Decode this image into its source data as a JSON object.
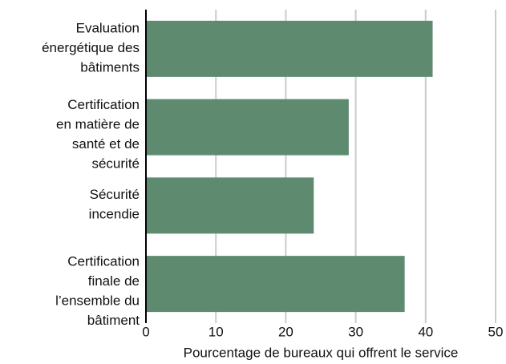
{
  "chart_data": {
    "type": "bar",
    "orientation": "horizontal",
    "categories": [
      "Evaluation\nénergétique des\nbâtiments",
      "Certification\nen matière de\nsanté et de\nsécurité",
      "Sécurité\nincendie",
      "Certification\nfinale de\nl’ensemble du\nbâtiment"
    ],
    "values": [
      41,
      29,
      24,
      37
    ],
    "color": "#5e8b70",
    "xlim": [
      0,
      50
    ],
    "xticks": [
      0,
      10,
      20,
      30,
      40,
      50
    ],
    "grid": true,
    "x_label": "Pourcentage de bureaux qui offrent le service"
  }
}
